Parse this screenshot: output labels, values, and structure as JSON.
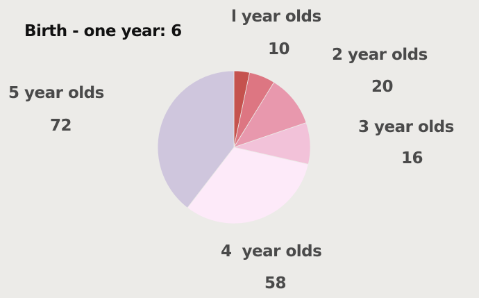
{
  "chart_data": {
    "type": "pie",
    "title": "",
    "slices": [
      {
        "label": "Birth - one year",
        "value": 6,
        "color": "#c5524e"
      },
      {
        "label": "1 year olds",
        "value": 10,
        "color": "#dd7682"
      },
      {
        "label": "2 year olds",
        "value": 20,
        "color": "#e898ad"
      },
      {
        "label": "3 year olds",
        "value": 16,
        "color": "#f2c2d9"
      },
      {
        "label": "4 year olds",
        "value": 58,
        "color": "#fdeaf9"
      },
      {
        "label": "5 year olds",
        "value": 72,
        "color": "#cfc6dd"
      }
    ],
    "start_angle": "12 o'clock",
    "direction": "clockwise",
    "legend": "none"
  },
  "labels": {
    "birth": {
      "name": "Birth - one year:",
      "value": "6"
    },
    "one": {
      "name": "l year olds",
      "value": "10"
    },
    "two": {
      "name": "2 year olds",
      "value": "20"
    },
    "three": {
      "name": "3 year olds",
      "value": "16"
    },
    "four": {
      "name": "4  year olds",
      "value": "58"
    },
    "five": {
      "name": "5 year olds",
      "value": "72"
    }
  }
}
